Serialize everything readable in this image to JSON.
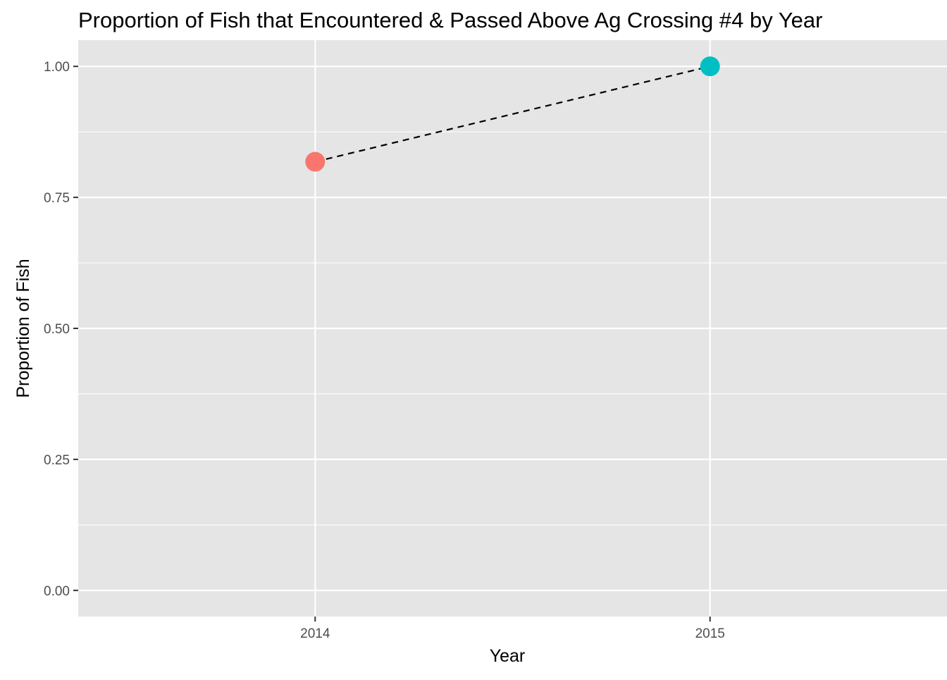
{
  "chart_data": {
    "type": "scatter",
    "title": "Proportion of Fish that Encountered & Passed Above Ag Crossing #4 by Year",
    "xlabel": "Year",
    "ylabel": "Proportion of Fish",
    "x": [
      2014,
      2015
    ],
    "x_tick_labels": [
      "2014",
      "2015"
    ],
    "xlim": [
      2013.4,
      2015.6
    ],
    "y_ticks": [
      0,
      0.25,
      0.5,
      0.75,
      1.0
    ],
    "y_tick_labels": [
      "0.00",
      "0.25",
      "0.50",
      "0.75",
      "1.00"
    ],
    "ylim": [
      -0.05,
      1.05
    ],
    "series": [
      {
        "x": 2014,
        "y": 0.818,
        "color": "#f8766d"
      },
      {
        "x": 2015,
        "y": 1.0,
        "color": "#00bfc4"
      }
    ],
    "connector_line": {
      "style": "dashed",
      "color": "#000000"
    },
    "grid": true,
    "panel_background": "#e5e5e5",
    "grid_color": "#ffffff",
    "legend": "none"
  }
}
